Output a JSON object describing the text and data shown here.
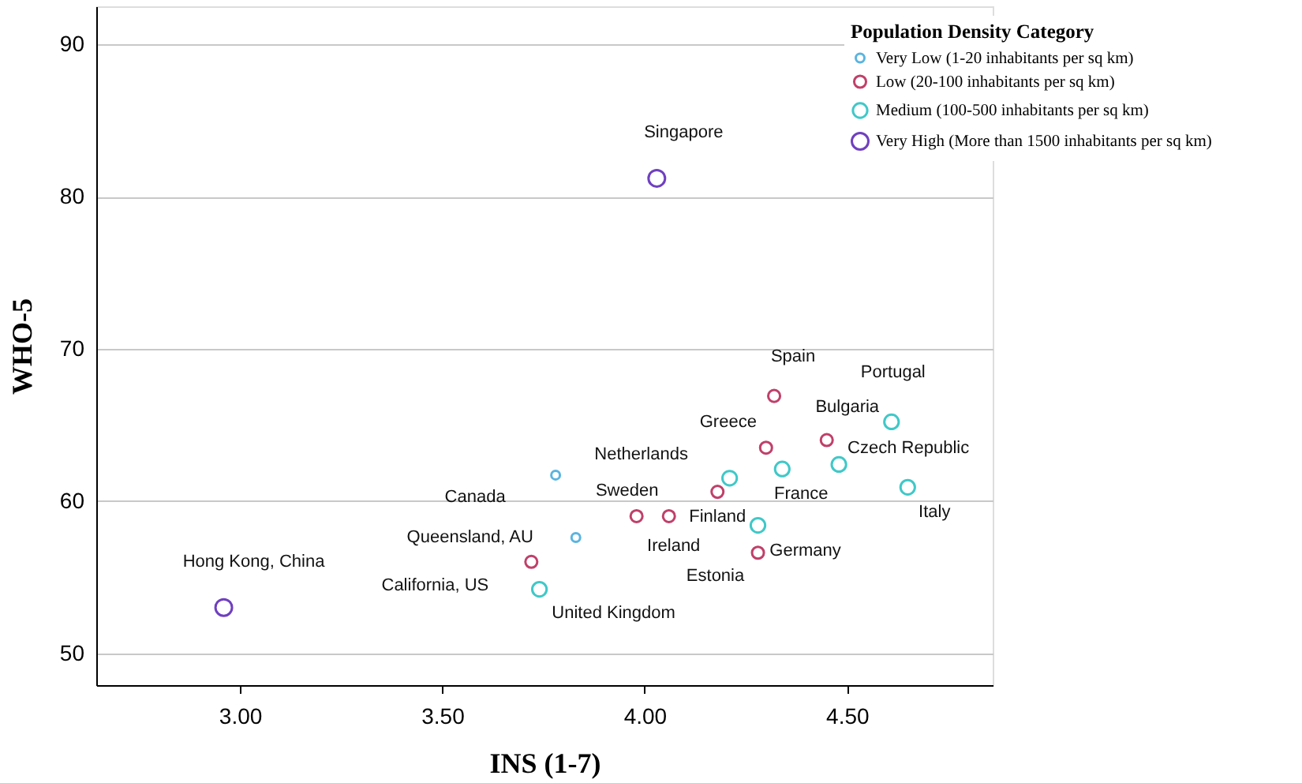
{
  "chart_data": {
    "type": "scatter",
    "xlabel": "INS (1-7)",
    "ylabel": "WHO-5",
    "legend_title": "Population Density Category",
    "xlim": [
      2.645,
      4.86
    ],
    "ylim": [
      47.9,
      92.5
    ],
    "xticks": [
      {
        "value": 3,
        "label": "3.00"
      },
      {
        "value": 3.5,
        "label": "3.50"
      },
      {
        "value": 4,
        "label": "4.00"
      },
      {
        "value": 4.5,
        "label": "4.50"
      }
    ],
    "yticks": [
      50,
      60,
      70,
      80,
      90
    ],
    "grid": "y",
    "legend": "top right",
    "marker": "circle",
    "series": [
      {
        "name": "Very Low (1-20 inhabitants per sq km)",
        "color": "#5ab4e0",
        "x": [
          3.78,
          3.83
        ],
        "values": [
          61.7,
          57.6
        ]
      },
      {
        "name": "Low (20-100 inhabitants per sq km)",
        "color": "#c0406a",
        "x": [
          3.72,
          3.98,
          4.06,
          4.18,
          4.28,
          4.3,
          4.32,
          4.45
        ],
        "values": [
          56.0,
          59.0,
          59.0,
          60.6,
          56.6,
          63.5,
          66.9,
          64.0
        ]
      },
      {
        "name": "Medium (100-500 inhabitants per sq km)",
        "color": "#40c8c8",
        "x": [
          3.74,
          4.21,
          4.34,
          4.28,
          4.48,
          4.61,
          4.65
        ],
        "values": [
          54.2,
          61.5,
          62.1,
          58.4,
          62.4,
          65.2,
          60.9
        ]
      },
      {
        "name": "Very High (More than 1500 inhabitants per sq km)",
        "color": "#7040c0",
        "x": [
          2.96,
          4.03
        ],
        "values": [
          53.0,
          81.2
        ]
      }
    ],
    "annotations": [
      {
        "text": "Canada",
        "x": 3.78,
        "y": 61.7
      },
      {
        "text": "Queensland, AU",
        "x": 3.83,
        "y": 57.6
      },
      {
        "text": "California, US",
        "x": 3.72,
        "y": 56.0
      },
      {
        "text": "Sweden",
        "x": 3.98,
        "y": 59.0
      },
      {
        "text": "Ireland",
        "x": 4.06,
        "y": 59.0
      },
      {
        "text": "Finland",
        "x": 4.18,
        "y": 60.6
      },
      {
        "text": "Estonia",
        "x": 4.28,
        "y": 56.6
      },
      {
        "text": "Greece",
        "x": 4.3,
        "y": 63.5
      },
      {
        "text": "Spain",
        "x": 4.32,
        "y": 66.9
      },
      {
        "text": "Bulgaria",
        "x": 4.45,
        "y": 64.0
      },
      {
        "text": "United Kingdom",
        "x": 3.74,
        "y": 54.2
      },
      {
        "text": "Netherlands",
        "x": 4.21,
        "y": 61.5
      },
      {
        "text": "France",
        "x": 4.34,
        "y": 62.1
      },
      {
        "text": "Germany",
        "x": 4.28,
        "y": 58.4
      },
      {
        "text": "Czech Republic",
        "x": 4.48,
        "y": 62.4
      },
      {
        "text": "Portugal",
        "x": 4.61,
        "y": 65.2
      },
      {
        "text": "Italy",
        "x": 4.65,
        "y": 60.9
      },
      {
        "text": "Hong Kong, China",
        "x": 2.96,
        "y": 53.0
      },
      {
        "text": "Singapore",
        "x": 4.03,
        "y": 81.2
      }
    ]
  }
}
